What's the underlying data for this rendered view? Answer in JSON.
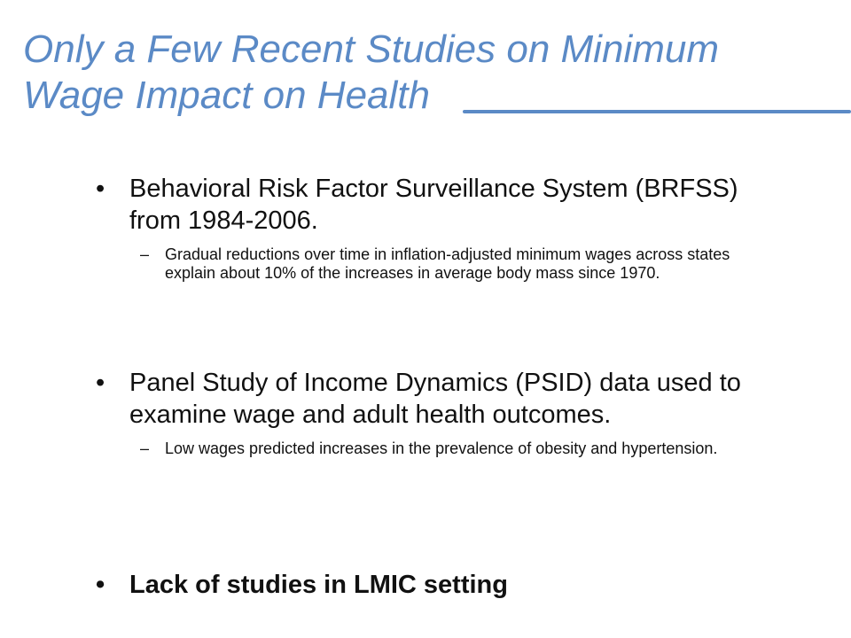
{
  "slide": {
    "title_line1": "Only a Few Recent Studies on Minimum",
    "title_line2": "Wage Impact on Health",
    "accent_color": "#5b8ac6",
    "bullet_symbol": "•",
    "sub_bullet_symbol": "–",
    "bullets": [
      {
        "text": "Behavioral Risk Factor Surveillance System (BRFSS) from 1984-2006.",
        "sub": "Gradual reductions over time in inflation-adjusted minimum wages across states explain about 10% of the increases in average body mass since 1970."
      },
      {
        "text": "Panel Study of Income Dynamics (PSID) data used to examine wage and adult health outcomes.",
        "sub": "Low wages predicted increases in the prevalence of obesity and hypertension."
      },
      {
        "text": "Lack of studies in LMIC setting",
        "bold": true
      }
    ]
  }
}
